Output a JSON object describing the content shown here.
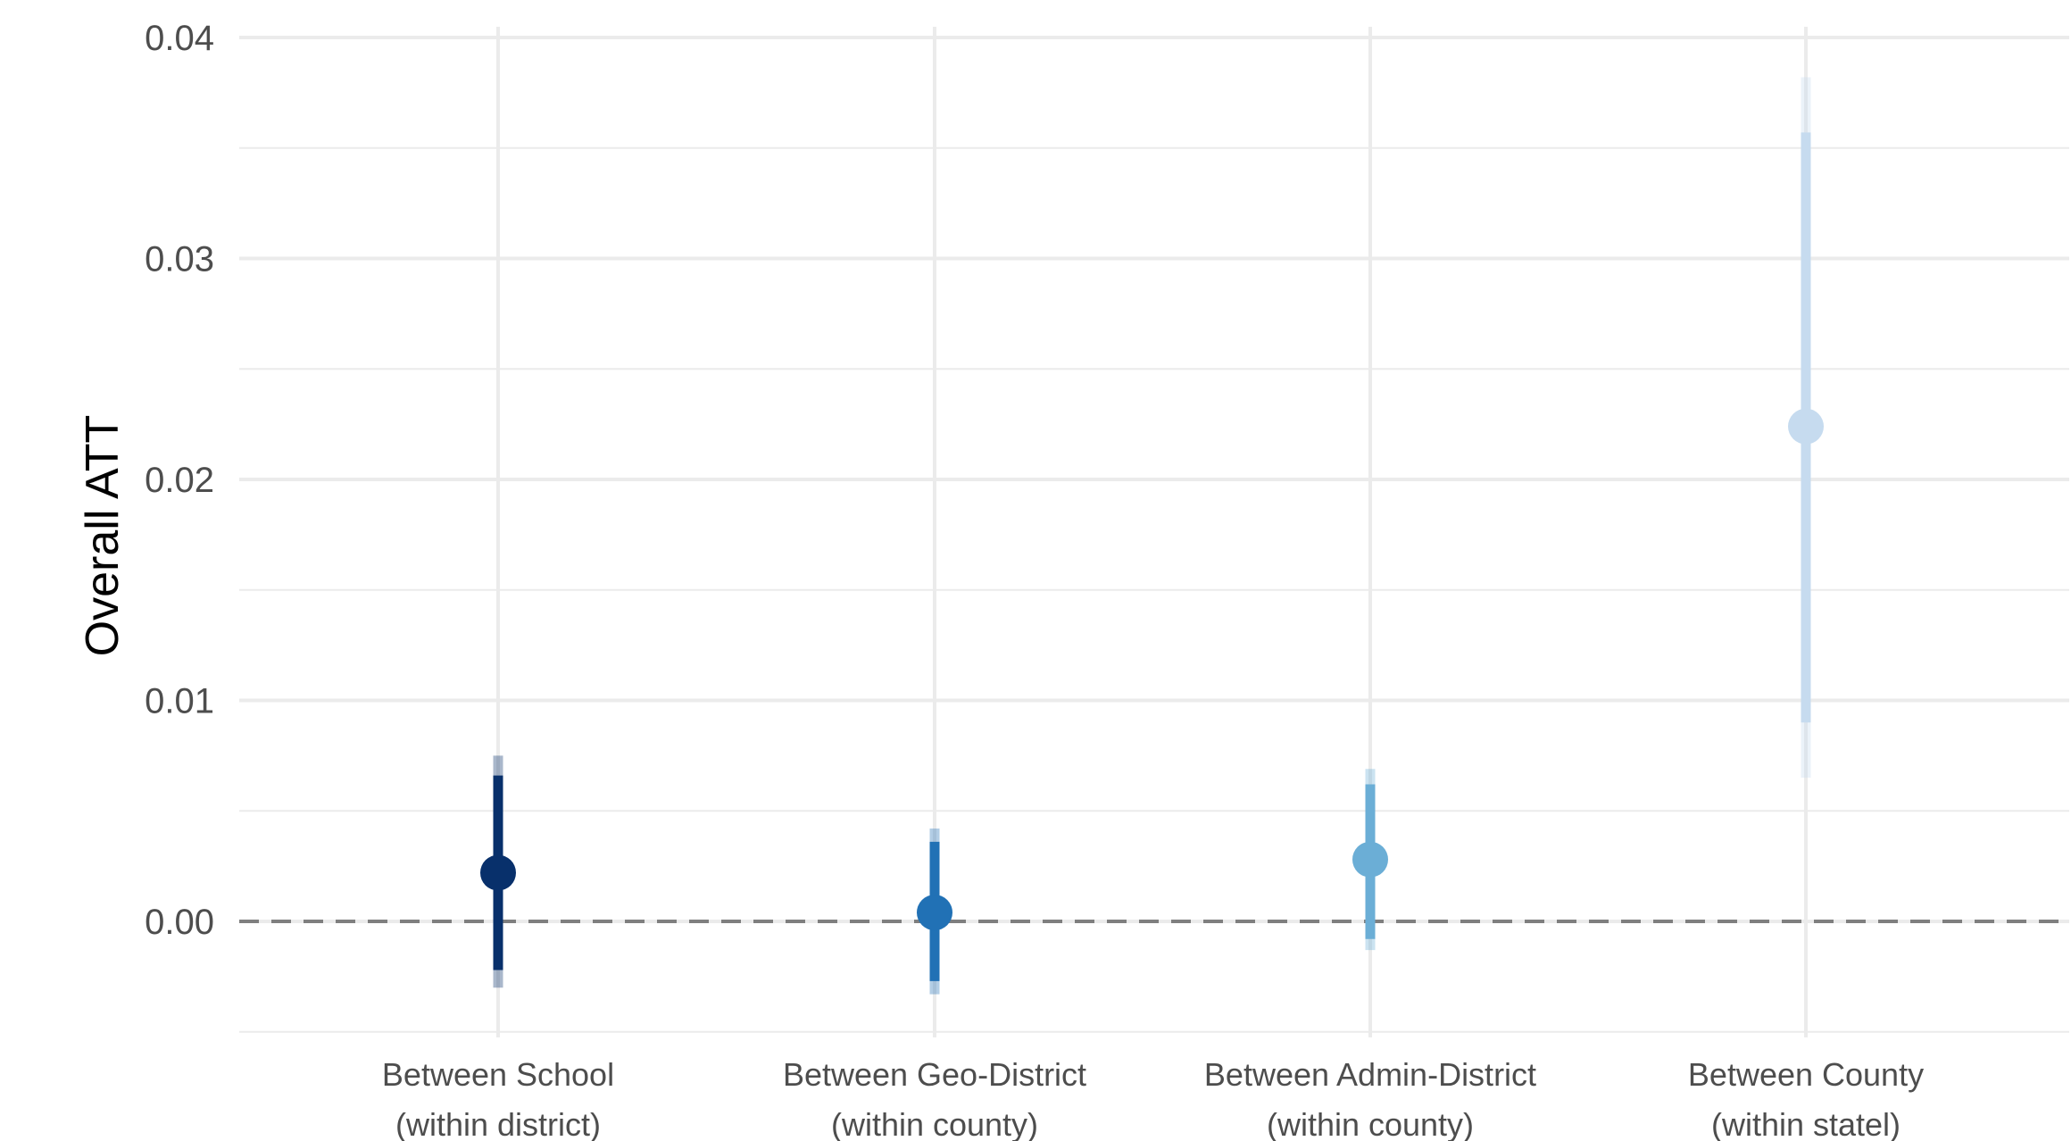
{
  "chart_data": {
    "type": "scatter",
    "title": "",
    "xlabel": "",
    "ylabel": "Overall ATT",
    "ylim": [
      -0.005,
      0.04
    ],
    "yticks": [
      "0.00",
      "0.01",
      "0.02",
      "0.03",
      "0.04"
    ],
    "ytick_values": [
      0.0,
      0.01,
      0.02,
      0.03,
      0.04
    ],
    "grid": true,
    "reference_line": 0,
    "categories": [
      {
        "line1": "Between School",
        "line2": "(within district)"
      },
      {
        "line1": "Between Geo-District",
        "line2": "(within county)"
      },
      {
        "line1": "Between Admin-District",
        "line2": "(within county)"
      },
      {
        "line1": "Between County",
        "line2": "(within statel)"
      }
    ],
    "points": [
      {
        "estimate": 0.0022,
        "ci_inner": [
          -0.0022,
          0.0066
        ],
        "ci_outer": [
          -0.003,
          0.0075
        ],
        "color": "#08306b"
      },
      {
        "estimate": 0.0004,
        "ci_inner": [
          -0.0027,
          0.0036
        ],
        "ci_outer": [
          -0.0033,
          0.0042
        ],
        "color": "#2171b5"
      },
      {
        "estimate": 0.0028,
        "ci_inner": [
          -0.0008,
          0.0062
        ],
        "ci_outer": [
          -0.0013,
          0.0069
        ],
        "color": "#6baed6"
      },
      {
        "estimate": 0.0224,
        "ci_inner": [
          0.009,
          0.0357
        ],
        "ci_outer": [
          0.0065,
          0.0382
        ],
        "color": "#c6dbef"
      }
    ]
  }
}
